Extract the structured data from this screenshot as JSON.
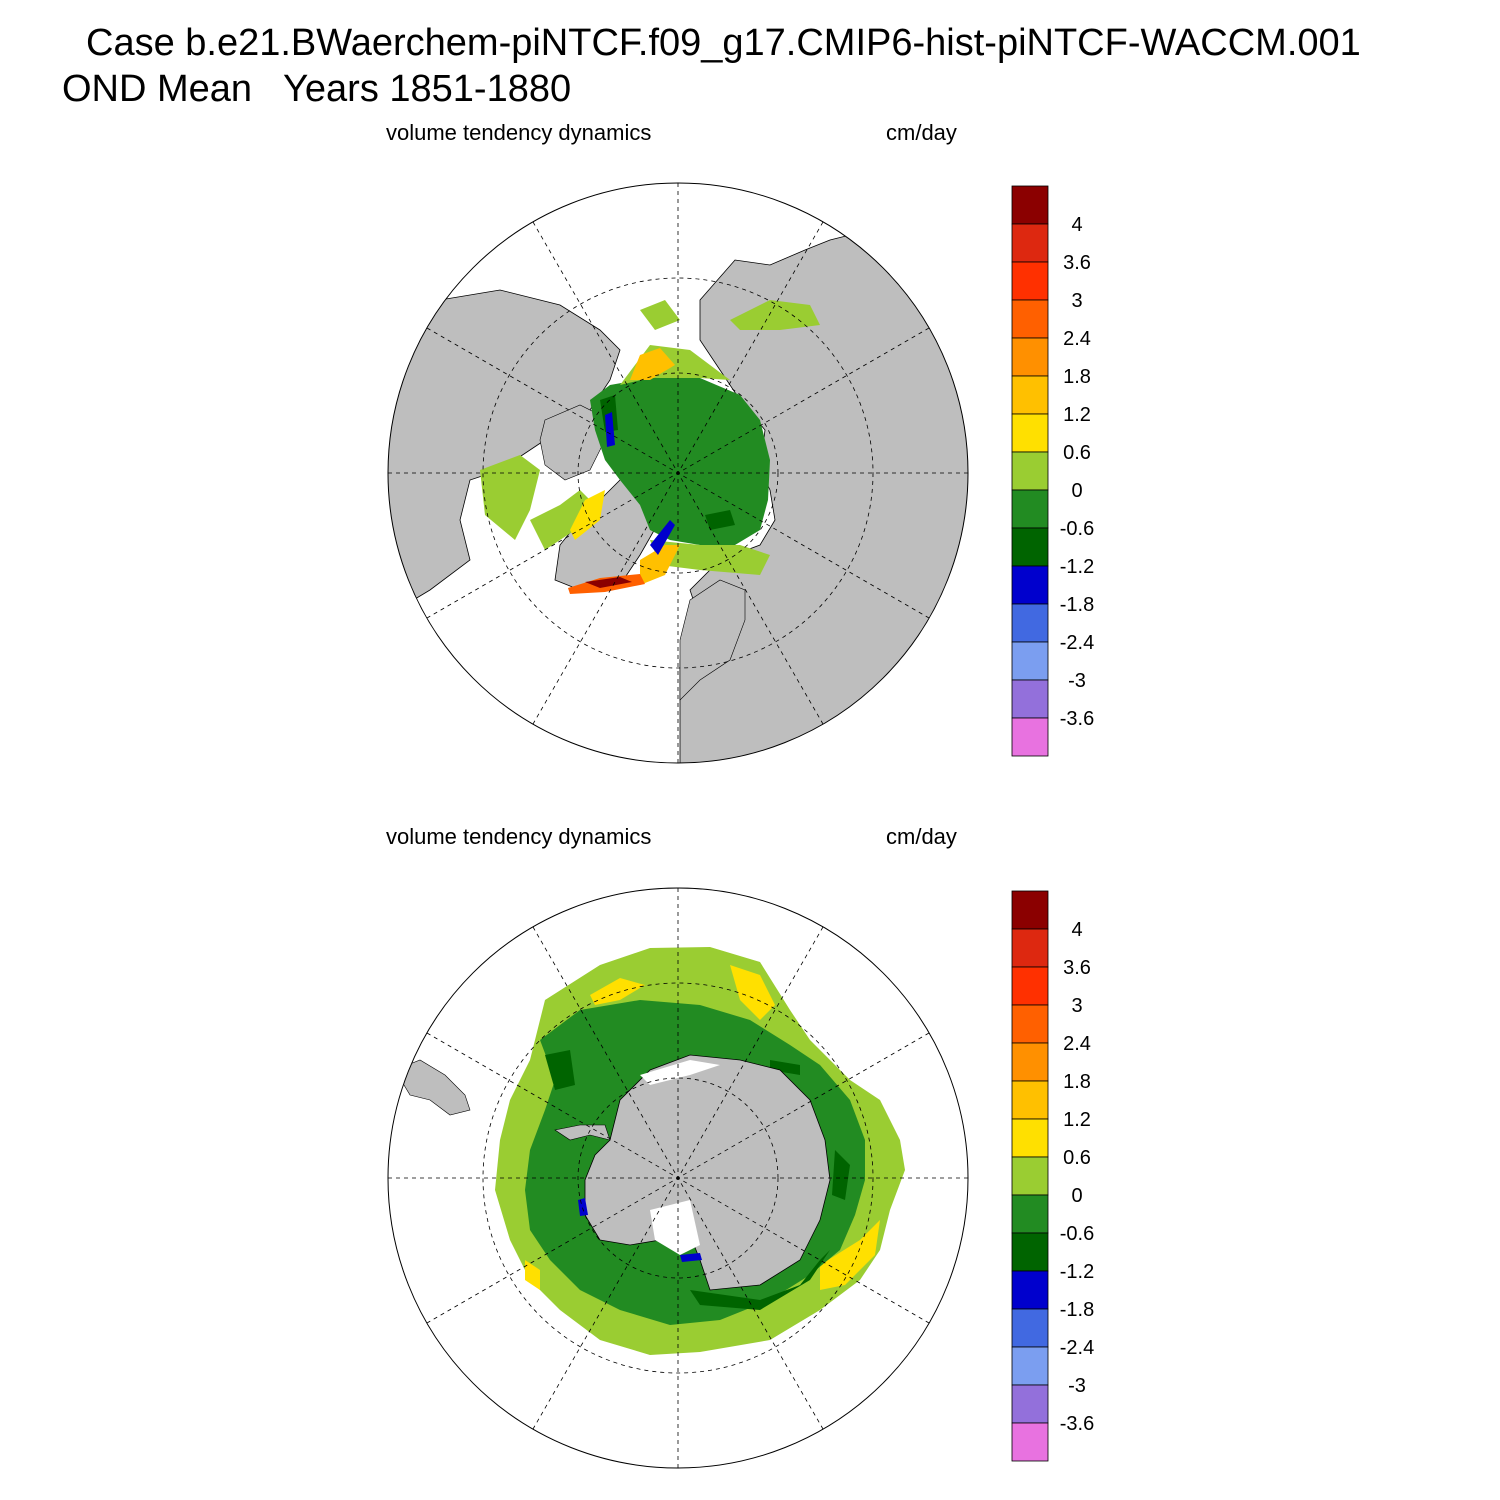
{
  "header": {
    "title_line1": "Case b.e21.BWaerchem-piNTCF.f09_g17.CMIP6-hist-piNTCF-WACCM.001",
    "title_line2": "OND Mean   Years 1851-1880"
  },
  "colors": {
    "land": "#bebebe",
    "ocean_no_ice": "#ffffff",
    "grid": "#000000"
  },
  "colorbar": {
    "levels": [
      "-3.6",
      "-3",
      "-2.4",
      "-1.8",
      "-1.2",
      "-0.6",
      "0",
      "0.6",
      "1.2",
      "1.8",
      "2.4",
      "3",
      "3.6",
      "4"
    ],
    "colors": [
      "#e872e0",
      "#9370db",
      "#7b9ef0",
      "#4169e1",
      "#0000cd",
      "#006400",
      "#228b22",
      "#9acd32",
      "#ffe000",
      "#ffc000",
      "#ff9000",
      "#ff6000",
      "#ff3000",
      "#dd2810",
      "#8b0000"
    ]
  },
  "panels": [
    {
      "id": "north",
      "left_label": "volume tendency dynamics",
      "right_label": "cm/day",
      "hemisphere": "Northern Hemisphere polar stereographic"
    },
    {
      "id": "south",
      "left_label": "volume tendency dynamics",
      "right_label": "cm/day",
      "hemisphere": "Southern Hemisphere polar stereographic"
    }
  ]
}
